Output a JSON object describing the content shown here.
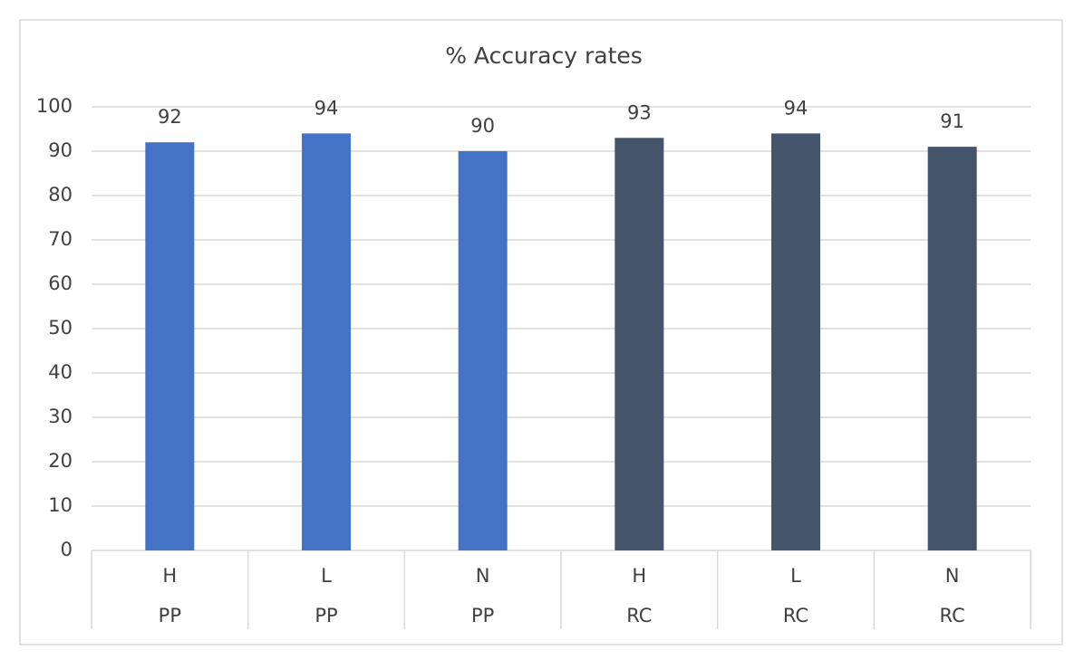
{
  "chart_data": {
    "type": "bar",
    "title": "% Accuracy rates",
    "categories": [
      "H",
      "L",
      "N",
      "H",
      "L",
      "N"
    ],
    "groups": [
      "PP",
      "PP",
      "PP",
      "RC",
      "RC",
      "RC"
    ],
    "values": [
      92,
      94,
      90,
      93,
      94,
      91
    ],
    "colors": [
      "#4472c4",
      "#4472c4",
      "#4472c4",
      "#44546a",
      "#44546a",
      "#44546a"
    ],
    "ylim": [
      0,
      100
    ],
    "yticks": [
      0,
      10,
      20,
      30,
      40,
      50,
      60,
      70,
      80,
      90,
      100
    ],
    "grid": true
  }
}
